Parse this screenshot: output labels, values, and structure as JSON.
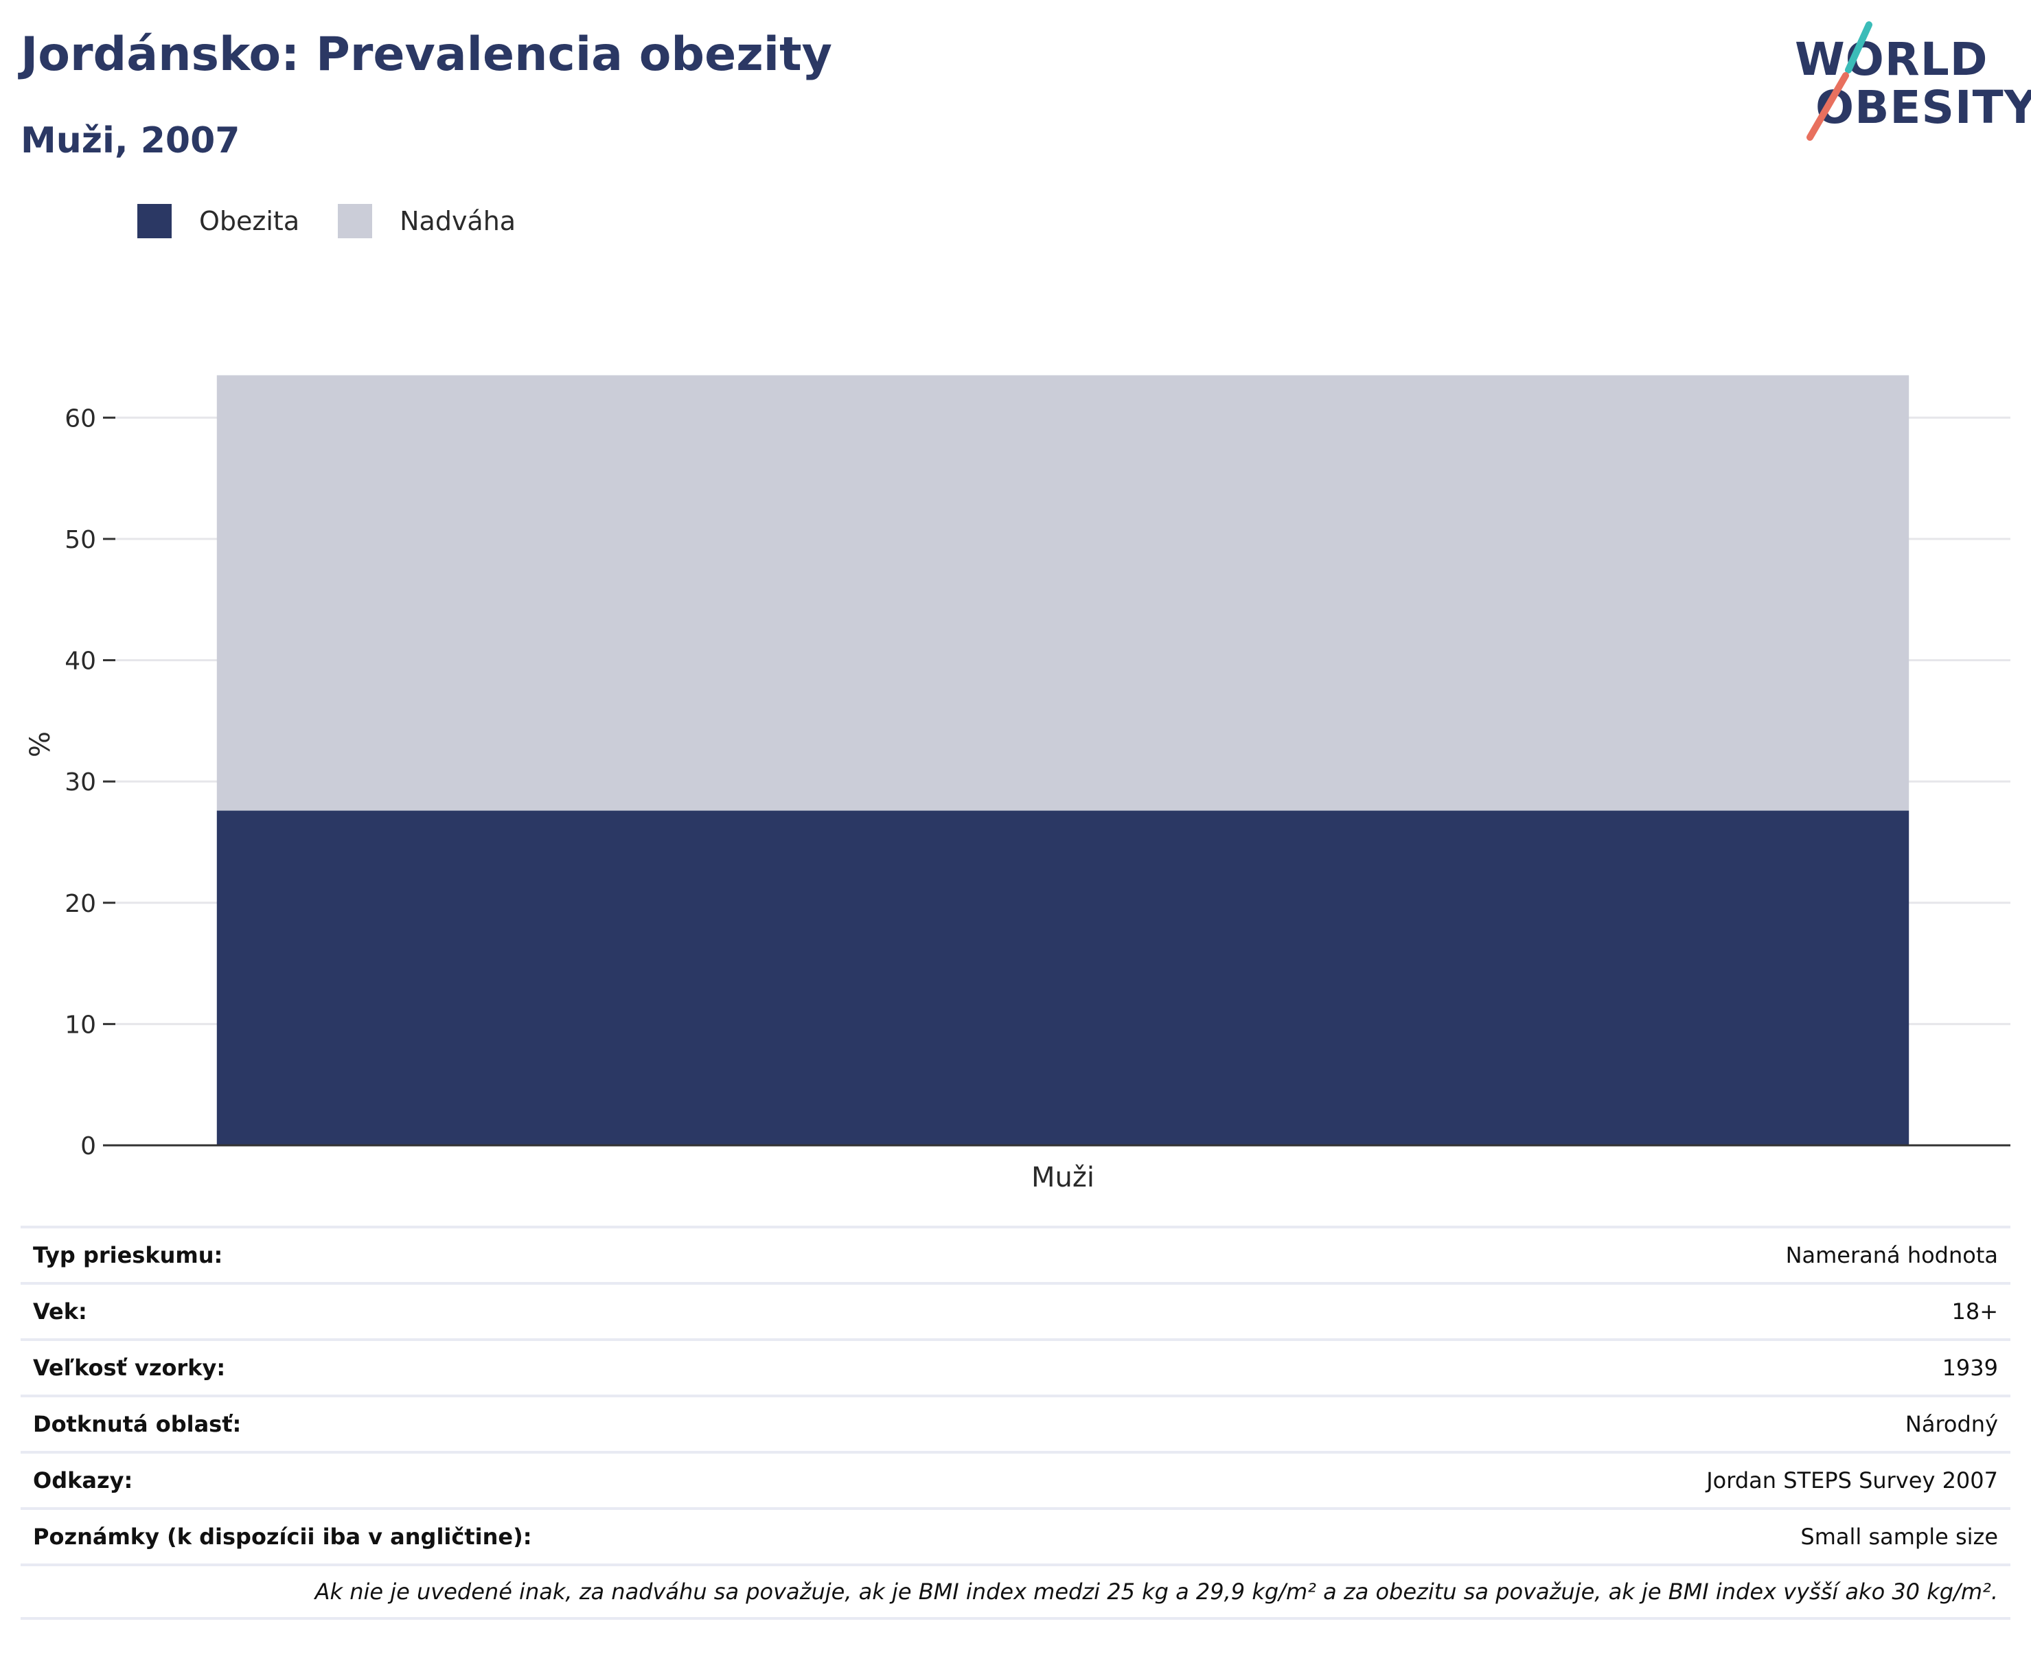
{
  "header": {
    "title": "Jordánsko: Prevalencia obezity",
    "subtitle": "Muži, 2007"
  },
  "logo": {
    "line1": "WORLD",
    "line2": "OBESITY",
    "colors": {
      "text": "#2b3864",
      "slash_top": "#3bbcb8",
      "slash_bottom": "#e8705e"
    }
  },
  "colors": {
    "obesity": "#2b3864",
    "overweight": "#cbcdd8",
    "grid": "#e6e6ea",
    "axis": "#333333"
  },
  "chart_data": {
    "type": "bar",
    "stacked": true,
    "categories": [
      "Muži"
    ],
    "series": [
      {
        "name": "Obezita",
        "values": [
          27.6
        ]
      },
      {
        "name": "Nadváha",
        "values": [
          35.9
        ]
      }
    ],
    "ylabel": "%",
    "ylim": [
      0,
      65
    ],
    "yticks": [
      0,
      10,
      20,
      30,
      40,
      50,
      60
    ],
    "grid": true,
    "legend": "top-left"
  },
  "table": {
    "rows": [
      {
        "label": "Typ prieskumu:",
        "value": "Nameraná hodnota"
      },
      {
        "label": "Vek:",
        "value": "18+"
      },
      {
        "label": "Veľkosť vzorky:",
        "value": "1939"
      },
      {
        "label": "Dotknutá oblasť:",
        "value": "Národný"
      },
      {
        "label": "Odkazy:",
        "value": "Jordan STEPS Survey 2007"
      },
      {
        "label": "Poznámky (k dispozícii iba v angličtine):",
        "value": "Small sample size"
      }
    ],
    "note": "Ak nie je uvedené inak, za nadváhu sa považuje, ak je BMI index medzi 25 kg a 29,9 kg/m² a za obezitu sa považuje, ak je BMI index vyšší ako 30 kg/m²."
  }
}
